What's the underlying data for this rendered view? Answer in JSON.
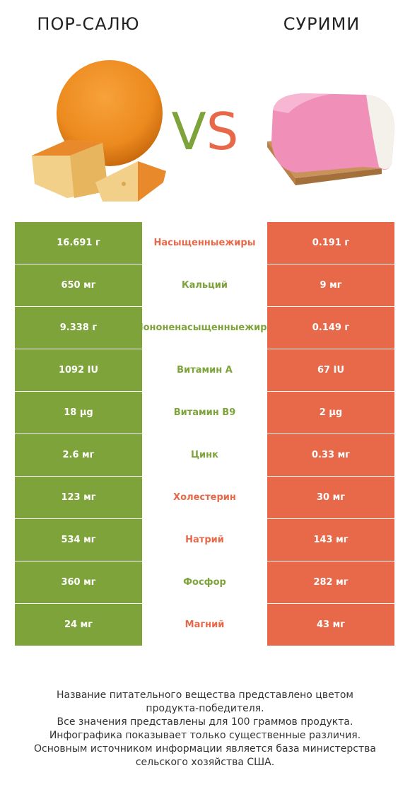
{
  "left_product": "ПОР-САЛЮ",
  "right_product": "СУРИМИ",
  "vs": {
    "v": "V",
    "s": "S"
  },
  "colors": {
    "left": "#7da33a",
    "right": "#e8694a"
  },
  "chart_data": {
    "type": "table",
    "columns": [
      "ПОР-САЛЮ",
      "",
      "СУРИМИ"
    ],
    "rows": [
      {
        "left": "16.691 г",
        "name": "Насыщенные жиры",
        "name_line1": "Насыщенные",
        "name_line2": "жиры",
        "right": "0.191 г",
        "winner": "right"
      },
      {
        "left": "650 мг",
        "name": "Кальций",
        "name_line1": "Кальций",
        "name_line2": "",
        "right": "9 мг",
        "winner": "left"
      },
      {
        "left": "9.338 г",
        "name": "Мононенасыщенные жиры",
        "name_line1": "Мононенасыщенные",
        "name_line2": "жиры",
        "right": "0.149 г",
        "winner": "left"
      },
      {
        "left": "1092 IU",
        "name": "Витамин A",
        "name_line1": "Витамин A",
        "name_line2": "",
        "right": "67 IU",
        "winner": "left"
      },
      {
        "left": "18 µg",
        "name": "Витамин B9",
        "name_line1": "Витамин B9",
        "name_line2": "",
        "right": "2 µg",
        "winner": "left"
      },
      {
        "left": "2.6 мг",
        "name": "Цинк",
        "name_line1": "Цинк",
        "name_line2": "",
        "right": "0.33 мг",
        "winner": "left"
      },
      {
        "left": "123 мг",
        "name": "Холестерин",
        "name_line1": "Холестерин",
        "name_line2": "",
        "right": "30 мг",
        "winner": "right"
      },
      {
        "left": "534 мг",
        "name": "Натрий",
        "name_line1": "Натрий",
        "name_line2": "",
        "right": "143 мг",
        "winner": "right"
      },
      {
        "left": "360 мг",
        "name": "Фосфор",
        "name_line1": "Фосфор",
        "name_line2": "",
        "right": "282 мг",
        "winner": "left"
      },
      {
        "left": "24 мг",
        "name": "Магний",
        "name_line1": "Магний",
        "name_line2": "",
        "right": "43 мг",
        "winner": "right"
      }
    ]
  },
  "footer": [
    "Название питательного вещества представлено цветом",
    "продукта-победителя.",
    "Все значения представлены для 100 граммов продукта.",
    "Инфографика показывает только существенные различия.",
    "Основным источником информации является база министерства",
    "сельского хозяйства США."
  ]
}
